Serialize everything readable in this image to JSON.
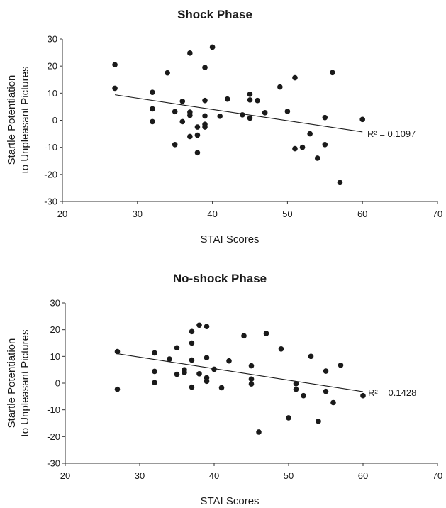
{
  "chart_data": [
    {
      "type": "scatter",
      "title": "Shock Phase",
      "xlabel": "STAI Scores",
      "ylabel": [
        "Startle Potentiation",
        "to Unpleasant Pictures"
      ],
      "xlim": [
        20,
        70
      ],
      "ylim": [
        -30,
        30
      ],
      "xticks": [
        "20",
        "30",
        "40",
        "50",
        "60",
        "70"
      ],
      "yticks": [
        "30",
        "20",
        "10",
        "0",
        "-10",
        "-20",
        "-30"
      ],
      "grid": false,
      "colors": {
        "points": "#1a1a1a",
        "trendline": "#1a1a1a"
      },
      "points": [
        [
          27,
          20.5
        ],
        [
          27,
          11.8
        ],
        [
          32,
          10.3
        ],
        [
          32,
          4.2
        ],
        [
          32,
          -0.5
        ],
        [
          34,
          17.5
        ],
        [
          35,
          3.2
        ],
        [
          35,
          -9
        ],
        [
          36,
          7
        ],
        [
          36,
          -0.5
        ],
        [
          37,
          24.8
        ],
        [
          37,
          3
        ],
        [
          37,
          1.8
        ],
        [
          37,
          -6
        ],
        [
          38,
          -2.5
        ],
        [
          38,
          -5.5
        ],
        [
          38,
          -12
        ],
        [
          39,
          19.5
        ],
        [
          39,
          7.3
        ],
        [
          39,
          1.6
        ],
        [
          39,
          -1.5
        ],
        [
          39,
          -2.5
        ],
        [
          40,
          27
        ],
        [
          41,
          1.5
        ],
        [
          42,
          7.8
        ],
        [
          44,
          2
        ],
        [
          45,
          9.6
        ],
        [
          45,
          7.5
        ],
        [
          45,
          0.8
        ],
        [
          46,
          7.3
        ],
        [
          47,
          2.8
        ],
        [
          49,
          12.3
        ],
        [
          50,
          3.3
        ],
        [
          51,
          15.7
        ],
        [
          51,
          -10.5
        ],
        [
          52,
          -10
        ],
        [
          53,
          -5
        ],
        [
          54,
          -14
        ],
        [
          55,
          1
        ],
        [
          55,
          -9
        ],
        [
          56,
          17.6
        ],
        [
          57,
          -23
        ],
        [
          60,
          0.3
        ]
      ],
      "trendline": {
        "x": [
          27,
          60
        ],
        "y": [
          9.4,
          -4.3
        ],
        "label": "R² = 0.1097"
      }
    },
    {
      "type": "scatter",
      "title": "No-shock Phase",
      "xlabel": "STAI Scores",
      "ylabel": [
        "Startle Potentiation",
        "to Unpleasant Pictures"
      ],
      "xlim": [
        20,
        70
      ],
      "ylim": [
        -30,
        30
      ],
      "xticks": [
        "20",
        "30",
        "40",
        "50",
        "60",
        "70"
      ],
      "yticks": [
        "30",
        "20",
        "10",
        "0",
        "-10",
        "-20",
        "-30"
      ],
      "grid": false,
      "colors": {
        "points": "#1a1a1a",
        "trendline": "#1a1a1a"
      },
      "points": [
        [
          27,
          11.8
        ],
        [
          27,
          -2.3
        ],
        [
          32,
          11.3
        ],
        [
          32,
          4.4
        ],
        [
          32,
          0.2
        ],
        [
          34,
          9
        ],
        [
          35,
          13.2
        ],
        [
          35,
          3.3
        ],
        [
          36,
          5
        ],
        [
          36,
          4
        ],
        [
          37,
          19.3
        ],
        [
          37,
          15
        ],
        [
          37,
          8.6
        ],
        [
          37,
          -1.5
        ],
        [
          38,
          21.7
        ],
        [
          38,
          3.5
        ],
        [
          39,
          21.2
        ],
        [
          39,
          9.5
        ],
        [
          39,
          2
        ],
        [
          39,
          0.7
        ],
        [
          40,
          5.2
        ],
        [
          41,
          -1.7
        ],
        [
          42,
          8.3
        ],
        [
          44,
          17.7
        ],
        [
          45,
          6.5
        ],
        [
          45,
          1.5
        ],
        [
          45,
          -0.3
        ],
        [
          46,
          -18.3
        ],
        [
          47,
          18.6
        ],
        [
          49,
          12.8
        ],
        [
          50,
          -13
        ],
        [
          51,
          -0.2
        ],
        [
          51,
          -2.3
        ],
        [
          52,
          -4.7
        ],
        [
          53,
          10
        ],
        [
          54,
          -14.3
        ],
        [
          55,
          4.5
        ],
        [
          55,
          -3.1
        ],
        [
          56,
          -7.3
        ],
        [
          57,
          6.7
        ],
        [
          60,
          -4.7
        ]
      ],
      "trendline": {
        "x": [
          27,
          60
        ],
        "y": [
          11,
          -3.2
        ],
        "label": "R² = 0.1428"
      }
    }
  ]
}
